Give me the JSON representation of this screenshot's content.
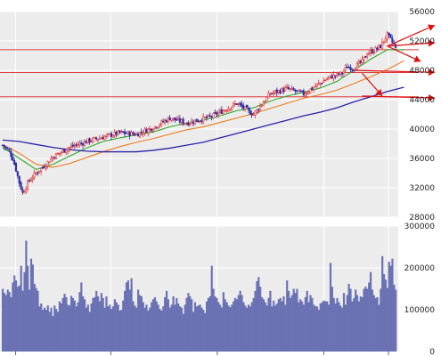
{
  "chart_data": [
    {
      "type": "line",
      "subtype": "candlestick",
      "title": "",
      "xlabel": "",
      "ylabel": "",
      "ylim": [
        28000,
        56000
      ],
      "y_ticks": [
        "56000",
        "52000",
        "48000",
        "44000",
        "40000",
        "36000",
        "32000",
        "28000"
      ],
      "y_tick_values": [
        56000,
        52000,
        48000,
        44000,
        40000,
        36000,
        32000,
        28000
      ],
      "grid": true,
      "colors": {
        "up": "#e0302c",
        "down": "#2a2aa6",
        "ma_short": "#2faa2a",
        "ma_mid": "#ef7a1a",
        "ma_long": "#2c22a8",
        "resistance": "#e0383c",
        "panel": "#ececec",
        "arrow": "#e01010"
      },
      "price_anchors": {
        "x": [
          0,
          4,
          6,
          8,
          10,
          12,
          14,
          16,
          20,
          25,
          30,
          40,
          50,
          60,
          70,
          80,
          90,
          100,
          110,
          125,
          140,
          150,
          160,
          170,
          180,
          195,
          203,
          206,
          210,
          215,
          218,
          222,
          226,
          230,
          234,
          237,
          240
        ],
        "y": [
          37800,
          37000,
          36000,
          34500,
          32700,
          31300,
          32200,
          33000,
          34000,
          35000,
          36200,
          37500,
          38300,
          38900,
          39500,
          39300,
          40200,
          41500,
          40800,
          41700,
          43500,
          42000,
          44800,
          45500,
          44800,
          47000,
          47600,
          48500,
          48300,
          49200,
          50300,
          50700,
          51300,
          52800,
          51500,
          49800,
          50300
        ]
      },
      "series": [
        {
          "name": "",
          "x": [
            0,
            10,
            20,
            30,
            40,
            50,
            60,
            70,
            80,
            90,
            100,
            110,
            120,
            130,
            140,
            150,
            160,
            170,
            180,
            190,
            200,
            210,
            220,
            230,
            240
          ],
          "values": [
            37500,
            36000,
            34500,
            35200,
            36300,
            37400,
            38300,
            38800,
            39200,
            39600,
            40300,
            40800,
            41200,
            41800,
            42500,
            42900,
            43800,
            44500,
            45000,
            45600,
            46500,
            48000,
            49500,
            50800,
            50800
          ]
        },
        {
          "name": "",
          "x": [
            0,
            10,
            20,
            30,
            40,
            50,
            60,
            70,
            80,
            90,
            100,
            110,
            120,
            130,
            140,
            150,
            160,
            170,
            180,
            190,
            200,
            210,
            220,
            230,
            240
          ],
          "values": [
            37900,
            36700,
            35200,
            34800,
            35300,
            36100,
            36900,
            37600,
            38200,
            38700,
            39300,
            39900,
            40300,
            40900,
            41500,
            42100,
            42800,
            43500,
            44200,
            44700,
            45300,
            46200,
            47100,
            48100,
            49300
          ]
        },
        {
          "name": "",
          "x": [
            0,
            10,
            20,
            30,
            40,
            50,
            60,
            70,
            80,
            90,
            100,
            110,
            120,
            130,
            140,
            150,
            160,
            170,
            180,
            190,
            200,
            210,
            220,
            230,
            240
          ],
          "values": [
            38500,
            38300,
            37900,
            37500,
            37200,
            37000,
            36900,
            36900,
            36900,
            37100,
            37400,
            37800,
            38200,
            38800,
            39400,
            40000,
            40600,
            41200,
            41800,
            42300,
            42900,
            43700,
            44400,
            45100,
            45700
          ]
        }
      ],
      "reference_lines": [
        {
          "type": "horizontal",
          "value": 50800
        },
        {
          "type": "horizontal",
          "value": 47700
        },
        {
          "type": "horizontal",
          "value": 44400
        }
      ],
      "annotations": [
        {
          "type": "arrow",
          "from": [
            230,
            51300
          ],
          "to": [
            262,
            54500
          ]
        },
        {
          "type": "arrow",
          "from": [
            230,
            51300
          ],
          "to": [
            262,
            51800
          ]
        },
        {
          "type": "arrow",
          "from": [
            230,
            51300
          ],
          "to": [
            250,
            49200
          ]
        },
        {
          "type": "arrow",
          "from": [
            210,
            48000
          ],
          "to": [
            262,
            47700
          ]
        },
        {
          "type": "arrow",
          "from": [
            215,
            47600
          ],
          "to": [
            227,
            44500
          ]
        },
        {
          "type": "arrow",
          "from": [
            215,
            44500
          ],
          "to": [
            262,
            44200
          ]
        }
      ]
    },
    {
      "type": "bar",
      "title": "",
      "xlabel": "",
      "ylabel": "",
      "ylim": [
        0,
        300000
      ],
      "y_ticks": [
        "300000",
        "200000",
        "100000",
        "0"
      ],
      "y_tick_values": [
        300000,
        200000,
        100000,
        0
      ],
      "grid": true,
      "colors": {
        "bar": "#6a72b4"
      },
      "values": [
        150000,
        140000,
        135000,
        148000,
        142000,
        130000,
        165000,
        182000,
        170000,
        155000,
        158000,
        205000,
        145000,
        190000,
        265000,
        205000,
        148000,
        222000,
        208000,
        162000,
        152000,
        145000,
        108000,
        115000,
        100000,
        105000,
        100000,
        110000,
        95000,
        105000,
        85000,
        110000,
        102000,
        95000,
        120000,
        115000,
        128000,
        138000,
        130000,
        112000,
        110000,
        133000,
        128000,
        122000,
        108000,
        118000,
        142000,
        165000,
        132000,
        125000,
        105000,
        112000,
        95000,
        115000,
        128000,
        130000,
        145000,
        132000,
        120000,
        140000,
        128000,
        105000,
        132000,
        108000,
        112000,
        102000,
        108000,
        125000,
        118000,
        112000,
        98000,
        100000,
        122000,
        145000,
        165000,
        170000,
        148000,
        175000,
        120000,
        110000,
        105000,
        148000,
        135000,
        132000,
        118000,
        105000,
        112000,
        98000,
        105000,
        118000,
        125000,
        130000,
        120000,
        112000,
        102000,
        98000,
        108000,
        130000,
        145000,
        125000,
        105000,
        112000,
        132000,
        112000,
        128000,
        115000,
        108000,
        105000,
        90000,
        112000,
        128000,
        140000,
        132000,
        125000,
        95000,
        118000,
        108000,
        110000,
        112000,
        105000,
        100000,
        92000,
        120000,
        128000,
        132000,
        205000,
        150000,
        132000,
        128000,
        118000,
        112000,
        105000,
        142000,
        125000,
        118000,
        110000,
        106000,
        112000,
        120000,
        128000,
        125000,
        135000,
        145000,
        135000,
        118000,
        110000,
        105000,
        112000,
        108000,
        118000,
        128000,
        145000,
        168000,
        178000,
        155000,
        130000,
        125000,
        118000,
        110000,
        128000,
        145000,
        108000,
        122000,
        110000,
        115000,
        125000,
        128000,
        120000,
        132000,
        112000,
        170000,
        145000,
        128000,
        135000,
        150000,
        140000,
        150000,
        118000,
        125000,
        120000,
        112000,
        130000,
        145000,
        118000,
        135000,
        128000,
        112000,
        108000,
        108000,
        100000,
        115000,
        118000,
        122000,
        120000,
        120000,
        112000,
        212000,
        155000,
        128000,
        115000,
        128000,
        118000,
        110000,
        105000,
        140000,
        112000,
        135000,
        162000,
        150000,
        120000,
        128000,
        148000,
        135000,
        120000,
        132000,
        130000,
        150000,
        155000,
        150000,
        165000,
        190000,
        148000,
        135000,
        128000,
        130000,
        112000,
        150000,
        228000,
        185000,
        172000,
        152000,
        215000,
        205000,
        222000,
        160000,
        148000
      ]
    }
  ]
}
